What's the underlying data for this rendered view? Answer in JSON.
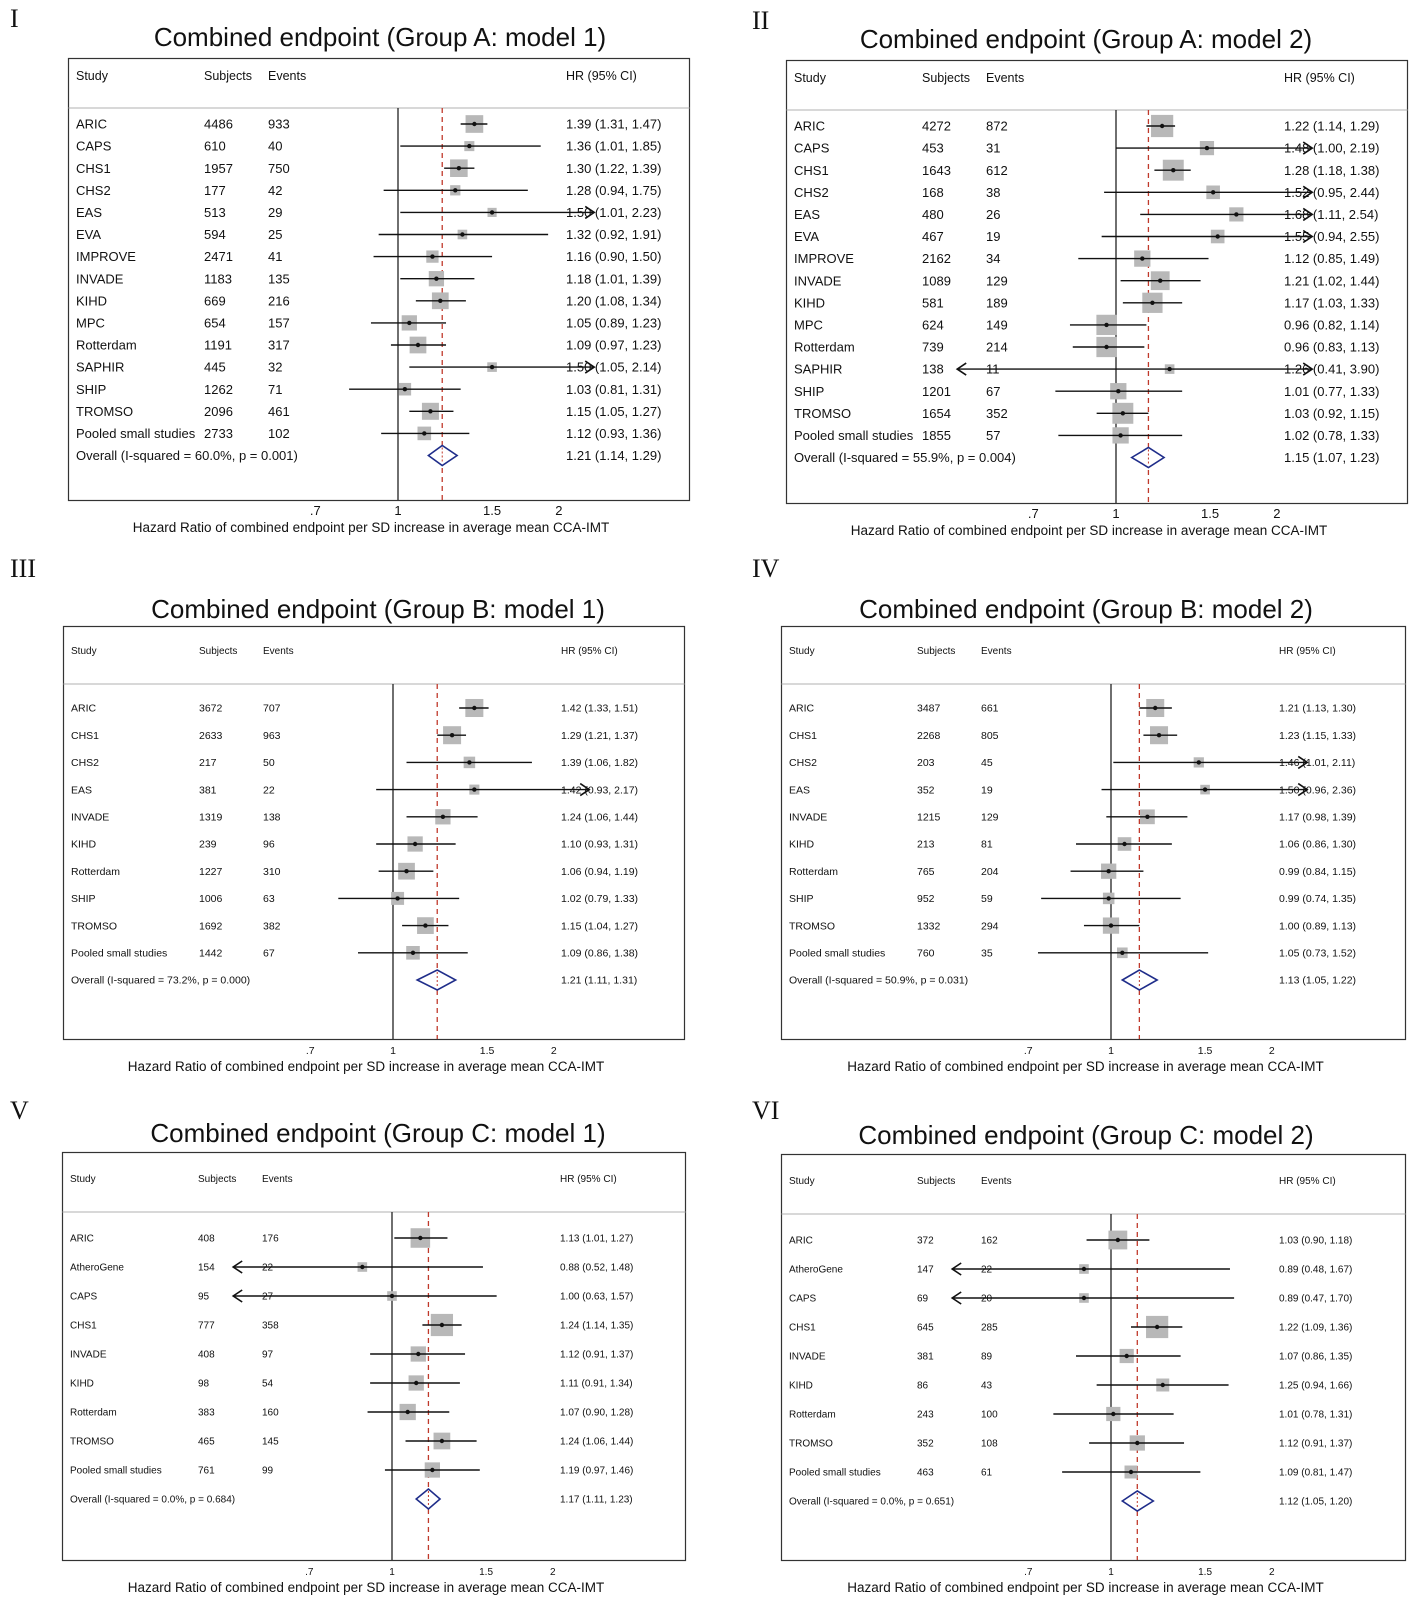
{
  "figure": {
    "columns": {
      "study": "Study",
      "subjects": "Subjects",
      "events": "Events",
      "hr": "HR (95% CI)"
    },
    "xlabel": "Hazard Ratio of combined endpoint per SD increase in average mean CCA-IMT",
    "ticks": [
      {
        "value": 0.7,
        "label": ".7"
      },
      {
        "value": 1,
        "label": "1"
      },
      {
        "value": 1.5,
        "label": "1.5"
      },
      {
        "value": 2,
        "label": "2"
      }
    ]
  },
  "chart_data": [
    {
      "type": "forest",
      "roman": "I",
      "title": "Combined endpoint (Group A: model 1)",
      "log_x": true,
      "xlim": [
        0.5,
        2.35
      ],
      "reference": 1,
      "pooled_line": 1.21,
      "rows": [
        {
          "study": "ARIC",
          "subjects": "4486",
          "events": "933",
          "hr": 1.39,
          "lo": 1.31,
          "hi": 1.47,
          "label": "1.39 (1.31, 1.47)",
          "w": 7.6
        },
        {
          "study": "CAPS",
          "subjects": "610",
          "events": "40",
          "hr": 1.36,
          "lo": 1.01,
          "hi": 1.85,
          "label": "1.36 (1.01, 1.85)",
          "w": 1.2
        },
        {
          "study": "CHS1",
          "subjects": "1957",
          "events": "750",
          "hr": 1.3,
          "lo": 1.22,
          "hi": 1.39,
          "label": "1.30 (1.22, 1.39)",
          "w": 7.5
        },
        {
          "study": "CHS2",
          "subjects": "177",
          "events": "42",
          "hr": 1.28,
          "lo": 0.94,
          "hi": 1.75,
          "label": "1.28 (0.94, 1.75)",
          "w": 1.3
        },
        {
          "study": "EAS",
          "subjects": "513",
          "events": "29",
          "hr": 1.5,
          "lo": 1.01,
          "hi": 2.23,
          "label": "1.50 (1.01, 2.23)",
          "w": 0.8,
          "arrow_hi": true
        },
        {
          "study": "EVA",
          "subjects": "594",
          "events": "25",
          "hr": 1.32,
          "lo": 0.92,
          "hi": 1.91,
          "label": "1.32 (0.92, 1.91)",
          "w": 1.0
        },
        {
          "study": "IMPROVE",
          "subjects": "2471",
          "events": "41",
          "hr": 1.16,
          "lo": 0.9,
          "hi": 1.5,
          "label": "1.16 (0.90, 1.50)",
          "w": 2.5
        },
        {
          "study": "INVADE",
          "subjects": "1183",
          "events": "135",
          "hr": 1.18,
          "lo": 1.01,
          "hi": 1.39,
          "label": "1.18 (1.01, 1.39)",
          "w": 5.0
        },
        {
          "study": "KIHD",
          "subjects": "669",
          "events": "216",
          "hr": 1.2,
          "lo": 1.08,
          "hi": 1.34,
          "label": "1.20 (1.08, 1.34)",
          "w": 6.5
        },
        {
          "study": "MPC",
          "subjects": "654",
          "events": "157",
          "hr": 1.05,
          "lo": 0.89,
          "hi": 1.23,
          "label": "1.05 (0.89, 1.23)",
          "w": 5.0
        },
        {
          "study": "Rotterdam",
          "subjects": "1191",
          "events": "317",
          "hr": 1.09,
          "lo": 0.97,
          "hi": 1.23,
          "label": "1.09 (0.97, 1.23)",
          "w": 6.5
        },
        {
          "study": "SAPHIR",
          "subjects": "445",
          "events": "32",
          "hr": 1.5,
          "lo": 1.05,
          "hi": 2.14,
          "label": "1.50 (1.05, 2.14)",
          "w": 1.0,
          "arrow_hi": true
        },
        {
          "study": "SHIP",
          "subjects": "1262",
          "events": "71",
          "hr": 1.03,
          "lo": 0.81,
          "hi": 1.31,
          "label": "1.03 (0.81, 1.31)",
          "w": 2.7
        },
        {
          "study": "TROMSO",
          "subjects": "2096",
          "events": "461",
          "hr": 1.15,
          "lo": 1.05,
          "hi": 1.27,
          "label": "1.15 (1.05, 1.27)",
          "w": 6.8
        },
        {
          "study": "Pooled small studies",
          "subjects": "2733",
          "events": "102",
          "hr": 1.12,
          "lo": 0.93,
          "hi": 1.36,
          "label": "1.12 (0.93, 1.36)",
          "w": 3.5
        }
      ],
      "overall": {
        "text": "Overall  (I-squared = 60.0%, p = 0.001)",
        "hr": 1.21,
        "lo": 1.14,
        "hi": 1.29,
        "label": "1.21 (1.14, 1.29)"
      }
    },
    {
      "type": "forest",
      "roman": "II",
      "title": "Combined endpoint (Group A: model 2)",
      "log_x": true,
      "xlim": [
        0.5,
        2.35
      ],
      "reference": 1,
      "pooled_line": 1.15,
      "rows": [
        {
          "study": "ARIC",
          "subjects": "4272",
          "events": "872",
          "hr": 1.22,
          "lo": 1.14,
          "hi": 1.29,
          "label": "1.22 (1.14, 1.29)",
          "w": 14
        },
        {
          "study": "CAPS",
          "subjects": "453",
          "events": "31",
          "hr": 1.48,
          "lo": 1.0,
          "hi": 2.19,
          "label": "1.48 (1.00, 2.19)",
          "w": 4,
          "arrow_hi": true
        },
        {
          "study": "CHS1",
          "subjects": "1643",
          "events": "612",
          "hr": 1.28,
          "lo": 1.18,
          "hi": 1.38,
          "label": "1.28 (1.18, 1.38)",
          "w": 12
        },
        {
          "study": "CHS2",
          "subjects": "168",
          "events": "38",
          "hr": 1.52,
          "lo": 0.95,
          "hi": 2.44,
          "label": "1.52 (0.95, 2.44)",
          "w": 3.5,
          "arrow_hi": true
        },
        {
          "study": "EAS",
          "subjects": "480",
          "events": "26",
          "hr": 1.68,
          "lo": 1.11,
          "hi": 2.54,
          "label": "1.68 (1.11, 2.54)",
          "w": 4,
          "arrow_hi": true
        },
        {
          "study": "EVA",
          "subjects": "467",
          "events": "19",
          "hr": 1.55,
          "lo": 0.94,
          "hi": 2.55,
          "label": "1.55 (0.94, 2.55)",
          "w": 3.5,
          "arrow_hi": true
        },
        {
          "study": "IMPROVE",
          "subjects": "2162",
          "events": "34",
          "hr": 1.12,
          "lo": 0.85,
          "hi": 1.49,
          "label": "1.12 (0.85, 1.49)",
          "w": 6
        },
        {
          "study": "INVADE",
          "subjects": "1089",
          "events": "129",
          "hr": 1.21,
          "lo": 1.02,
          "hi": 1.44,
          "label": "1.21 (1.02, 1.44)",
          "w": 9
        },
        {
          "study": "KIHD",
          "subjects": "581",
          "events": "189",
          "hr": 1.17,
          "lo": 1.03,
          "hi": 1.33,
          "label": "1.17 (1.03, 1.33)",
          "w": 11
        },
        {
          "study": "MPC",
          "subjects": "624",
          "events": "149",
          "hr": 0.96,
          "lo": 0.82,
          "hi": 1.14,
          "label": "0.96 (0.82, 1.14)",
          "w": 11
        },
        {
          "study": "Rotterdam",
          "subjects": "739",
          "events": "214",
          "hr": 0.96,
          "lo": 0.83,
          "hi": 1.13,
          "label": "0.96 (0.83, 1.13)",
          "w": 11
        },
        {
          "study": "SAPHIR",
          "subjects": "138",
          "events": "11",
          "hr": 1.26,
          "lo": 0.41,
          "hi": 3.9,
          "label": "1.26 (0.41, 3.90)",
          "w": 1,
          "arrow_lo": true,
          "arrow_hi": true
        },
        {
          "study": "SHIP",
          "subjects": "1201",
          "events": "67",
          "hr": 1.01,
          "lo": 0.77,
          "hi": 1.33,
          "label": "1.01 (0.77, 1.33)",
          "w": 6
        },
        {
          "study": "TROMSO",
          "subjects": "1654",
          "events": "352",
          "hr": 1.03,
          "lo": 0.92,
          "hi": 1.15,
          "label": "1.03 (0.92, 1.15)",
          "w": 12
        },
        {
          "study": "Pooled small studies",
          "subjects": "1855",
          "events": "57",
          "hr": 1.02,
          "lo": 0.78,
          "hi": 1.33,
          "label": "1.02 (0.78, 1.33)",
          "w": 6
        }
      ],
      "overall": {
        "text": "Overall  (I-squared = 55.9%, p = 0.004)",
        "hr": 1.15,
        "lo": 1.07,
        "hi": 1.23,
        "label": "1.15 (1.07, 1.23)"
      }
    },
    {
      "type": "forest",
      "roman": "III",
      "title": "Combined endpoint (Group B: model 1)",
      "log_x": true,
      "xlim": [
        0.5,
        2.35
      ],
      "reference": 1,
      "pooled_line": 1.21,
      "rows": [
        {
          "study": "ARIC",
          "subjects": "3672",
          "events": "707",
          "hr": 1.42,
          "lo": 1.33,
          "hi": 1.51,
          "label": "1.42 (1.33, 1.51)",
          "w": 8
        },
        {
          "study": "CHS1",
          "subjects": "2633",
          "events": "963",
          "hr": 1.29,
          "lo": 1.21,
          "hi": 1.37,
          "label": "1.29 (1.21, 1.37)",
          "w": 8
        },
        {
          "study": "CHS2",
          "subjects": "217",
          "events": "50",
          "hr": 1.39,
          "lo": 1.06,
          "hi": 1.82,
          "label": "1.39 (1.06, 1.82)",
          "w": 2
        },
        {
          "study": "EAS",
          "subjects": "381",
          "events": "22",
          "hr": 1.42,
          "lo": 0.93,
          "hi": 2.17,
          "label": "1.42 (0.93, 2.17)",
          "w": 1.2,
          "arrow_hi": true
        },
        {
          "study": "INVADE",
          "subjects": "1319",
          "events": "138",
          "hr": 1.24,
          "lo": 1.06,
          "hi": 1.44,
          "label": "1.24 (1.06, 1.44)",
          "w": 5
        },
        {
          "study": "KIHD",
          "subjects": "239",
          "events": "96",
          "hr": 1.1,
          "lo": 0.93,
          "hi": 1.31,
          "label": "1.10 (0.93, 1.31)",
          "w": 5
        },
        {
          "study": "Rotterdam",
          "subjects": "1227",
          "events": "310",
          "hr": 1.06,
          "lo": 0.94,
          "hi": 1.19,
          "label": "1.06 (0.94, 1.19)",
          "w": 6.5
        },
        {
          "study": "SHIP",
          "subjects": "1006",
          "events": "63",
          "hr": 1.02,
          "lo": 0.79,
          "hi": 1.33,
          "label": "1.02 (0.79, 1.33)",
          "w": 3
        },
        {
          "study": "TROMSO",
          "subjects": "1692",
          "events": "382",
          "hr": 1.15,
          "lo": 1.04,
          "hi": 1.27,
          "label": "1.15 (1.04, 1.27)",
          "w": 6.5
        },
        {
          "study": "Pooled small studies",
          "subjects": "1442",
          "events": "67",
          "hr": 1.09,
          "lo": 0.86,
          "hi": 1.38,
          "label": "1.09 (0.86, 1.38)",
          "w": 3.5
        }
      ],
      "overall": {
        "text": "Overall  (I-squared = 73.2%, p = 0.000)",
        "hr": 1.21,
        "lo": 1.11,
        "hi": 1.31,
        "label": "1.21 (1.11, 1.31)"
      }
    },
    {
      "type": "forest",
      "roman": "IV",
      "title": "Combined endpoint (Group B: model 2)",
      "log_x": true,
      "xlim": [
        0.5,
        2.35
      ],
      "reference": 1,
      "pooled_line": 1.13,
      "rows": [
        {
          "study": "ARIC",
          "subjects": "3487",
          "events": "661",
          "hr": 1.21,
          "lo": 1.13,
          "hi": 1.3,
          "label": "1.21 (1.13, 1.30)",
          "w": 8
        },
        {
          "study": "CHS1",
          "subjects": "2268",
          "events": "805",
          "hr": 1.23,
          "lo": 1.15,
          "hi": 1.33,
          "label": "1.23 (1.15, 1.33)",
          "w": 8
        },
        {
          "study": "CHS2",
          "subjects": "203",
          "events": "45",
          "hr": 1.46,
          "lo": 1.01,
          "hi": 2.11,
          "label": "1.46 (1.01, 2.11)",
          "w": 1.3,
          "arrow_hi": true
        },
        {
          "study": "EAS",
          "subjects": "352",
          "events": "19",
          "hr": 1.5,
          "lo": 0.96,
          "hi": 2.36,
          "label": "1.50 (0.96, 2.36)",
          "w": 1,
          "arrow_hi": true
        },
        {
          "study": "INVADE",
          "subjects": "1215",
          "events": "129",
          "hr": 1.17,
          "lo": 0.98,
          "hi": 1.39,
          "label": "1.17 (0.98, 1.39)",
          "w": 4.5
        },
        {
          "study": "KIHD",
          "subjects": "213",
          "events": "81",
          "hr": 1.06,
          "lo": 0.86,
          "hi": 1.3,
          "label": "1.06 (0.86, 1.30)",
          "w": 3.5
        },
        {
          "study": "Rotterdam",
          "subjects": "765",
          "events": "204",
          "hr": 0.99,
          "lo": 0.84,
          "hi": 1.15,
          "label": "0.99 (0.84, 1.15)",
          "w": 5
        },
        {
          "study": "SHIP",
          "subjects": "952",
          "events": "59",
          "hr": 0.99,
          "lo": 0.74,
          "hi": 1.35,
          "label": "0.99 (0.74, 1.35)",
          "w": 2
        },
        {
          "study": "TROMSO",
          "subjects": "1332",
          "events": "294",
          "hr": 1.0,
          "lo": 0.89,
          "hi": 1.13,
          "label": "1.00 (0.89, 1.13)",
          "w": 6
        },
        {
          "study": "Pooled small studies",
          "subjects": "760",
          "events": "35",
          "hr": 1.05,
          "lo": 0.73,
          "hi": 1.52,
          "label": "1.05 (0.73, 1.52)",
          "w": 1.5
        }
      ],
      "overall": {
        "text": "Overall  (I-squared = 50.9%, p = 0.031)",
        "hr": 1.13,
        "lo": 1.05,
        "hi": 1.22,
        "label": "1.13 (1.05, 1.22)"
      }
    },
    {
      "type": "forest",
      "roman": "V",
      "title": "Combined endpoint (Group C: model 1)",
      "log_x": true,
      "xlim": [
        0.5,
        2.35
      ],
      "reference": 1,
      "pooled_line": 1.17,
      "rows": [
        {
          "study": "ARIC",
          "subjects": "408",
          "events": "176",
          "hr": 1.13,
          "lo": 1.01,
          "hi": 1.27,
          "label": "1.13 (1.01, 1.27)",
          "w": 10
        },
        {
          "study": "AtheroGene",
          "subjects": "154",
          "events": "22",
          "hr": 0.88,
          "lo": 0.52,
          "hi": 1.48,
          "label": "0.88 (0.52, 1.48)",
          "w": 1,
          "arrow_lo": true
        },
        {
          "study": "CAPS",
          "subjects": "95",
          "events": "27",
          "hr": 1.0,
          "lo": 0.63,
          "hi": 1.57,
          "label": "1.00 (0.63, 1.57)",
          "w": 1,
          "arrow_lo": true
        },
        {
          "study": "CHS1",
          "subjects": "777",
          "events": "358",
          "hr": 1.24,
          "lo": 1.14,
          "hi": 1.35,
          "label": "1.24 (1.14, 1.35)",
          "w": 14
        },
        {
          "study": "INVADE",
          "subjects": "408",
          "events": "97",
          "hr": 1.12,
          "lo": 0.91,
          "hi": 1.37,
          "label": "1.12 (0.91, 1.37)",
          "w": 5
        },
        {
          "study": "KIHD",
          "subjects": "98",
          "events": "54",
          "hr": 1.11,
          "lo": 0.91,
          "hi": 1.34,
          "label": "1.11 (0.91, 1.34)",
          "w": 5
        },
        {
          "study": "Rotterdam",
          "subjects": "383",
          "events": "160",
          "hr": 1.07,
          "lo": 0.9,
          "hi": 1.28,
          "label": "1.07 (0.90, 1.28)",
          "w": 6
        },
        {
          "study": "TROMSO",
          "subjects": "465",
          "events": "145",
          "hr": 1.24,
          "lo": 1.06,
          "hi": 1.44,
          "label": "1.24 (1.06, 1.44)",
          "w": 6.5
        },
        {
          "study": "Pooled small studies",
          "subjects": "761",
          "events": "99",
          "hr": 1.19,
          "lo": 0.97,
          "hi": 1.46,
          "label": "1.19 (0.97, 1.46)",
          "w": 5
        }
      ],
      "overall": {
        "text": "Overall  (I-squared = 0.0%, p = 0.684)",
        "hr": 1.17,
        "lo": 1.11,
        "hi": 1.23,
        "label": "1.17 (1.11, 1.23)"
      }
    },
    {
      "type": "forest",
      "roman": "VI",
      "title": "Combined endpoint (Group C: model 2)",
      "log_x": true,
      "xlim": [
        0.5,
        2.35
      ],
      "reference": 1,
      "pooled_line": 1.12,
      "rows": [
        {
          "study": "ARIC",
          "subjects": "372",
          "events": "162",
          "hr": 1.03,
          "lo": 0.9,
          "hi": 1.18,
          "label": "1.03 (0.90, 1.18)",
          "w": 9
        },
        {
          "study": "AtheroGene",
          "subjects": "147",
          "events": "22",
          "hr": 0.89,
          "lo": 0.48,
          "hi": 1.67,
          "label": "0.89 (0.48, 1.67)",
          "w": 1,
          "arrow_lo": true
        },
        {
          "study": "CAPS",
          "subjects": "69",
          "events": "20",
          "hr": 0.89,
          "lo": 0.47,
          "hi": 1.7,
          "label": "0.89 (0.47, 1.70)",
          "w": 1,
          "arrow_lo": true
        },
        {
          "study": "CHS1",
          "subjects": "645",
          "events": "285",
          "hr": 1.22,
          "lo": 1.09,
          "hi": 1.36,
          "label": "1.22 (1.09, 1.36)",
          "w": 14
        },
        {
          "study": "INVADE",
          "subjects": "381",
          "events": "89",
          "hr": 1.07,
          "lo": 0.86,
          "hi": 1.35,
          "label": "1.07 (0.86, 1.35)",
          "w": 4
        },
        {
          "study": "KIHD",
          "subjects": "86",
          "events": "43",
          "hr": 1.25,
          "lo": 0.94,
          "hi": 1.66,
          "label": "1.25 (0.94, 1.66)",
          "w": 3
        },
        {
          "study": "Rotterdam",
          "subjects": "243",
          "events": "100",
          "hr": 1.01,
          "lo": 0.78,
          "hi": 1.31,
          "label": "1.01 (0.78, 1.31)",
          "w": 4
        },
        {
          "study": "TROMSO",
          "subjects": "352",
          "events": "108",
          "hr": 1.12,
          "lo": 0.91,
          "hi": 1.37,
          "label": "1.12 (0.91, 1.37)",
          "w": 5
        },
        {
          "study": "Pooled small studies",
          "subjects": "463",
          "events": "61",
          "hr": 1.09,
          "lo": 0.81,
          "hi": 1.47,
          "label": "1.09 (0.81, 1.47)",
          "w": 3
        }
      ],
      "overall": {
        "text": "Overall  (I-squared = 0.0%, p = 0.651)",
        "hr": 1.12,
        "lo": 1.05,
        "hi": 1.2,
        "label": "1.12 (1.05, 1.20)"
      }
    }
  ]
}
